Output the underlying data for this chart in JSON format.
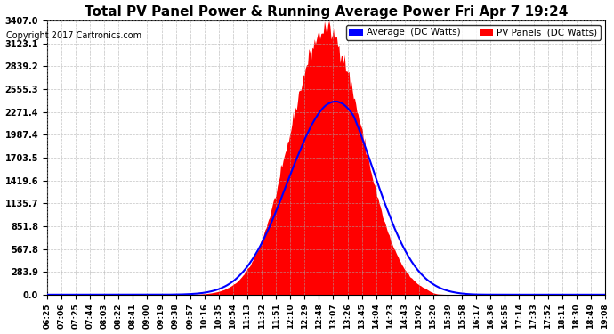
{
  "title": "Total PV Panel Power & Running Average Power Fri Apr 7 19:24",
  "copyright": "Copyright 2017 Cartronics.com",
  "legend_avg": "Average  (DC Watts)",
  "legend_pv": "PV Panels  (DC Watts)",
  "y_ticks": [
    0.0,
    283.9,
    567.8,
    851.8,
    1135.7,
    1419.6,
    1703.5,
    1987.4,
    2271.4,
    2555.3,
    2839.2,
    3123.1,
    3407.0
  ],
  "y_max": 3407.0,
  "background_color": "#ffffff",
  "plot_bg_color": "#ffffff",
  "grid_color": "#aaaaaa",
  "pv_color": "#ff0000",
  "avg_color": "#0000ff",
  "x_labels": [
    "06:25",
    "07:06",
    "07:25",
    "07:44",
    "08:03",
    "08:22",
    "08:41",
    "09:00",
    "09:19",
    "09:38",
    "09:57",
    "10:16",
    "10:35",
    "10:54",
    "11:13",
    "11:32",
    "11:51",
    "12:10",
    "12:29",
    "12:48",
    "13:07",
    "13:26",
    "13:45",
    "14:04",
    "14:23",
    "14:43",
    "15:02",
    "15:20",
    "15:39",
    "15:58",
    "16:17",
    "16:36",
    "16:55",
    "17:14",
    "17:33",
    "17:52",
    "18:11",
    "18:30",
    "18:49",
    "19:08"
  ],
  "num_points": 500
}
